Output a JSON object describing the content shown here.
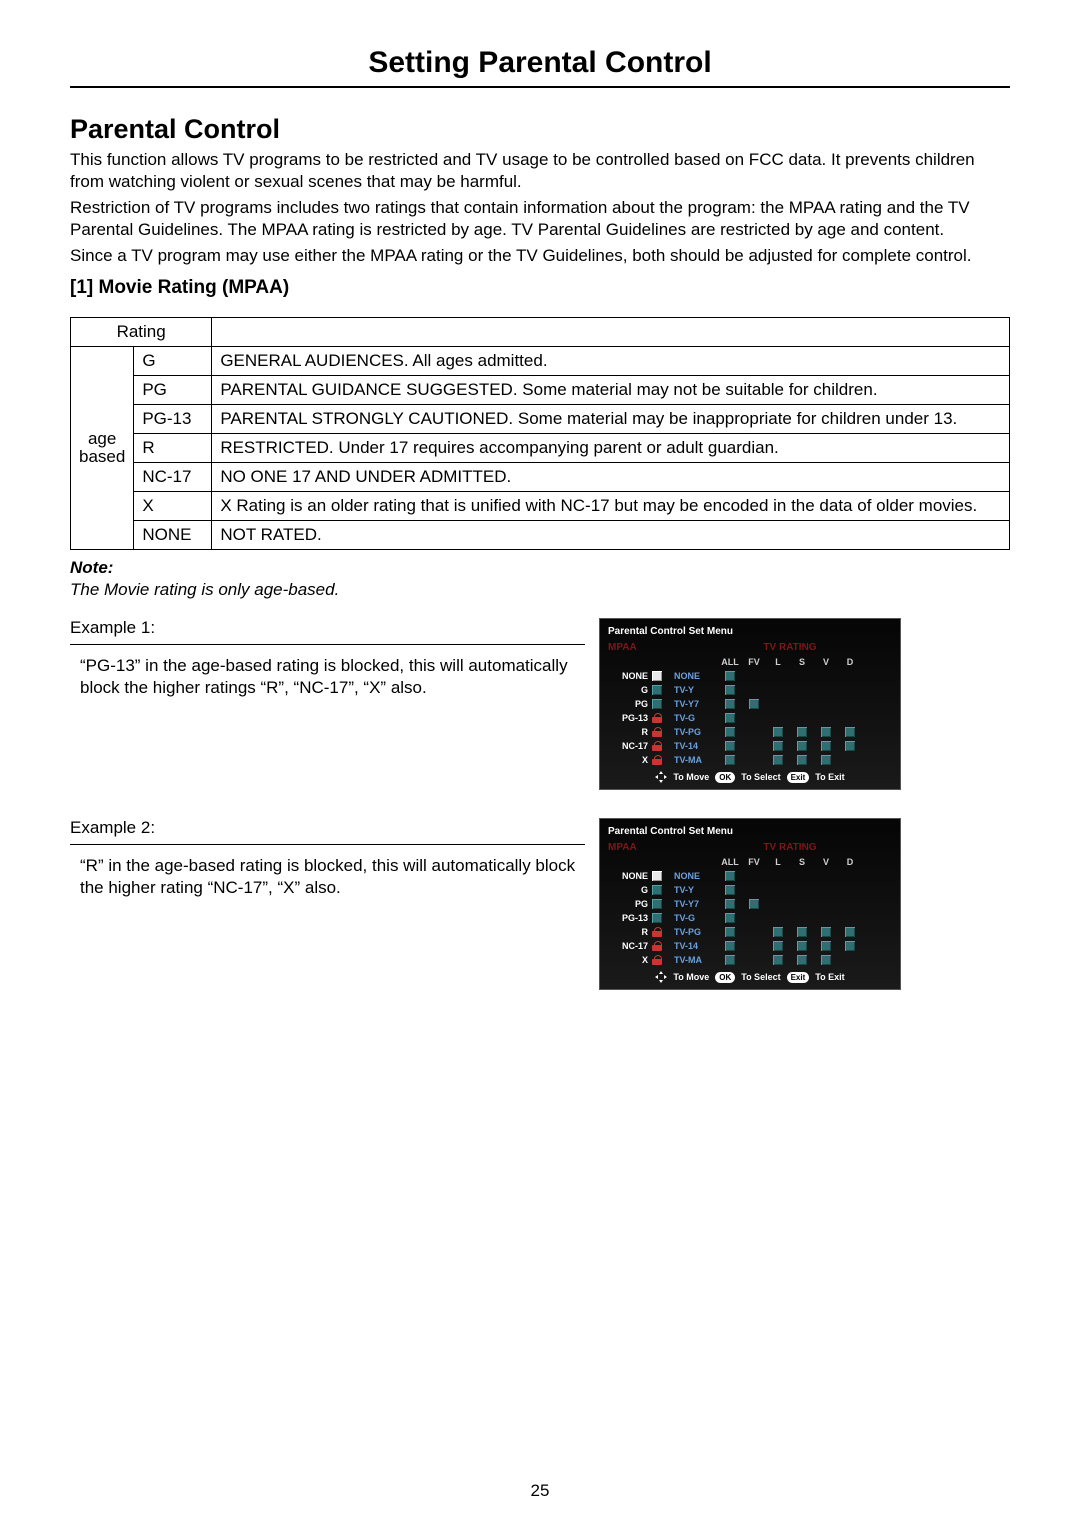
{
  "page": {
    "main_title": "Setting Parental Control",
    "section_title": "Parental Control",
    "intro": [
      "This function allows TV programs to be restricted and TV usage to be controlled based on FCC data. It prevents children from watching violent or sexual scenes that may be harmful.",
      "Restriction of TV programs includes two ratings that contain information about the program: the MPAA rating and the TV Parental Guidelines. The MPAA rating is restricted by age. TV Parental Guidelines are restricted by age and content.",
      "Since a TV program may use either the MPAA rating or the TV Guidelines, both should be adjusted for complete control."
    ],
    "sub_title": "[1] Movie Rating (MPAA)",
    "page_number": "25"
  },
  "mpaa_table": {
    "header_rating": "Rating",
    "group_label": "age\nbased",
    "rows": [
      {
        "code": "G",
        "desc": "GENERAL AUDIENCES. All ages admitted."
      },
      {
        "code": "PG",
        "desc": "PARENTAL GUIDANCE SUGGESTED. Some material may not be suitable for children."
      },
      {
        "code": "PG-13",
        "desc": "PARENTAL STRONGLY CAUTIONED. Some material may be inappropriate for children under 13."
      },
      {
        "code": "R",
        "desc": "RESTRICTED. Under 17 requires accompanying parent or adult guardian."
      },
      {
        "code": "NC-17",
        "desc": "NO ONE 17 AND UNDER ADMITTED."
      },
      {
        "code": "X",
        "desc": "X Rating is an older rating that is unified with NC-17 but may be encoded in the data of older movies."
      },
      {
        "code": "NONE",
        "desc": "NOT RATED."
      }
    ]
  },
  "note": {
    "label": "Note:",
    "text": "The Movie rating is only age-based."
  },
  "examples": [
    {
      "title": "Example 1:",
      "body": "“PG-13” in the age-based rating is blocked, this will automatically block the higher ratings “R”, “NC-17”, “X” also."
    },
    {
      "title": "Example 2:",
      "body": "“R” in the age-based rating is blocked, this will automatically block the higher rating “NC-17”, “X” also."
    }
  ],
  "osd_common": {
    "title": "Parental Control Set Menu",
    "mpaa_header": "MPAA",
    "tv_header": "TV RATING",
    "tv_cols": [
      "ALL",
      "FV",
      "L",
      "S",
      "V",
      "D"
    ],
    "mpaa_labels": [
      "NONE",
      "G",
      "PG",
      "PG-13",
      "R",
      "NC-17",
      "X"
    ],
    "tv_labels": [
      "NONE",
      "TV-Y",
      "TV-Y7",
      "TV-G",
      "TV-PG",
      "TV-14",
      "TV-MA"
    ],
    "footer": {
      "move": "To Move",
      "ok": "OK",
      "select": "To Select",
      "exit": "Exit",
      "to_exit": "To Exit"
    },
    "colors": {
      "mpaa_header_color": "#7a1818",
      "tv_label_color": "#6aa0de",
      "check_teal": "#2f6f71",
      "check_white": "#e8e8e8",
      "lock_color": "#c33333",
      "panel_bg_top": "#050505",
      "panel_bg_bottom": "#1a1a1a"
    }
  },
  "osd1": {
    "mpaa_state": [
      "white",
      "teal",
      "teal",
      "lock",
      "lock",
      "lock",
      "lock"
    ],
    "tv_matrix": [
      [
        "teal",
        "",
        "",
        "",
        "",
        ""
      ],
      [
        "teal",
        "",
        "",
        "",
        "",
        ""
      ],
      [
        "teal",
        "teal",
        "",
        "",
        "",
        ""
      ],
      [
        "teal",
        "",
        "",
        "",
        "",
        ""
      ],
      [
        "teal",
        "",
        "teal",
        "teal",
        "teal",
        "teal"
      ],
      [
        "teal",
        "",
        "teal",
        "teal",
        "teal",
        "teal"
      ],
      [
        "teal",
        "",
        "teal",
        "teal",
        "teal",
        ""
      ]
    ]
  },
  "osd2": {
    "mpaa_state": [
      "white",
      "teal",
      "teal",
      "teal",
      "lock",
      "lock",
      "lock"
    ],
    "tv_matrix": [
      [
        "teal",
        "",
        "",
        "",
        "",
        ""
      ],
      [
        "teal",
        "",
        "",
        "",
        "",
        ""
      ],
      [
        "teal",
        "teal",
        "",
        "",
        "",
        ""
      ],
      [
        "teal",
        "",
        "",
        "",
        "",
        ""
      ],
      [
        "teal",
        "",
        "teal",
        "teal",
        "teal",
        "teal"
      ],
      [
        "teal",
        "",
        "teal",
        "teal",
        "teal",
        "teal"
      ],
      [
        "teal",
        "",
        "teal",
        "teal",
        "teal",
        ""
      ]
    ]
  }
}
